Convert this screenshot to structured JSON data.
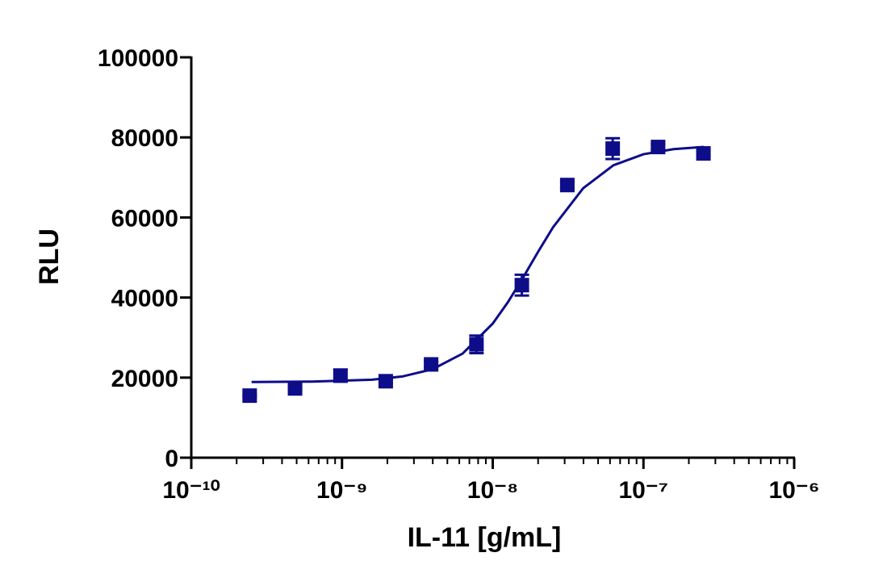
{
  "chart_data": {
    "type": "scatter",
    "x_label": "IL-11 [g/mL]",
    "y_label": "RLU",
    "xscale": "log",
    "xlim": [
      1e-10,
      1e-06
    ],
    "ylim": [
      0,
      100000
    ],
    "xticks": [
      {
        "value": 1e-10,
        "label": "10⁻¹⁰"
      },
      {
        "value": 1e-09,
        "label": "10⁻⁹"
      },
      {
        "value": 1e-08,
        "label": "10⁻⁸"
      },
      {
        "value": 1e-07,
        "label": "10⁻⁷"
      },
      {
        "value": 1e-06,
        "label": "10⁻⁶"
      }
    ],
    "xminorticks": [
      2e-10,
      3e-10,
      4e-10,
      5e-10,
      6e-10,
      7e-10,
      8e-10,
      9e-10,
      2e-09,
      3e-09,
      4e-09,
      5e-09,
      6e-09,
      7e-09,
      8e-09,
      9e-09,
      2e-08,
      3e-08,
      4e-08,
      5e-08,
      6e-08,
      7e-08,
      8e-08,
      9e-08,
      2e-07,
      3e-07,
      4e-07,
      5e-07,
      6e-07,
      7e-07,
      8e-07,
      9e-07
    ],
    "yticks": [
      0,
      20000,
      40000,
      60000,
      80000,
      100000
    ],
    "color": "#0d0d8a",
    "x": [
      2.44e-10,
      4.88e-10,
      9.77e-10,
      1.95e-09,
      3.9e-09,
      7.8e-09,
      1.56e-08,
      3.125e-08,
      6.25e-08,
      1.25e-07,
      2.5e-07
    ],
    "values": [
      15500,
      17300,
      20500,
      19100,
      23300,
      28300,
      43100,
      68100,
      77200,
      77600,
      76000
    ],
    "errors": [
      300,
      400,
      1500,
      500,
      700,
      2200,
      2600,
      800,
      2600,
      700,
      600
    ],
    "fit": {
      "x": [
        2.512e-10,
        6.31e-10,
        1.585e-09,
        2.512e-09,
        3.981e-09,
        6.31e-09,
        1e-08,
        1.259e-08,
        1.585e-08,
        1.995e-08,
        2.512e-08,
        3.981e-08,
        6.31e-08,
        1e-07,
        1.585e-07,
        2.512e-07
      ],
      "values": [
        18900,
        19000,
        19490,
        20280,
        22080,
        26000,
        33500,
        38800,
        44900,
        51350,
        57550,
        67300,
        73030,
        75800,
        77060,
        77610
      ]
    }
  }
}
